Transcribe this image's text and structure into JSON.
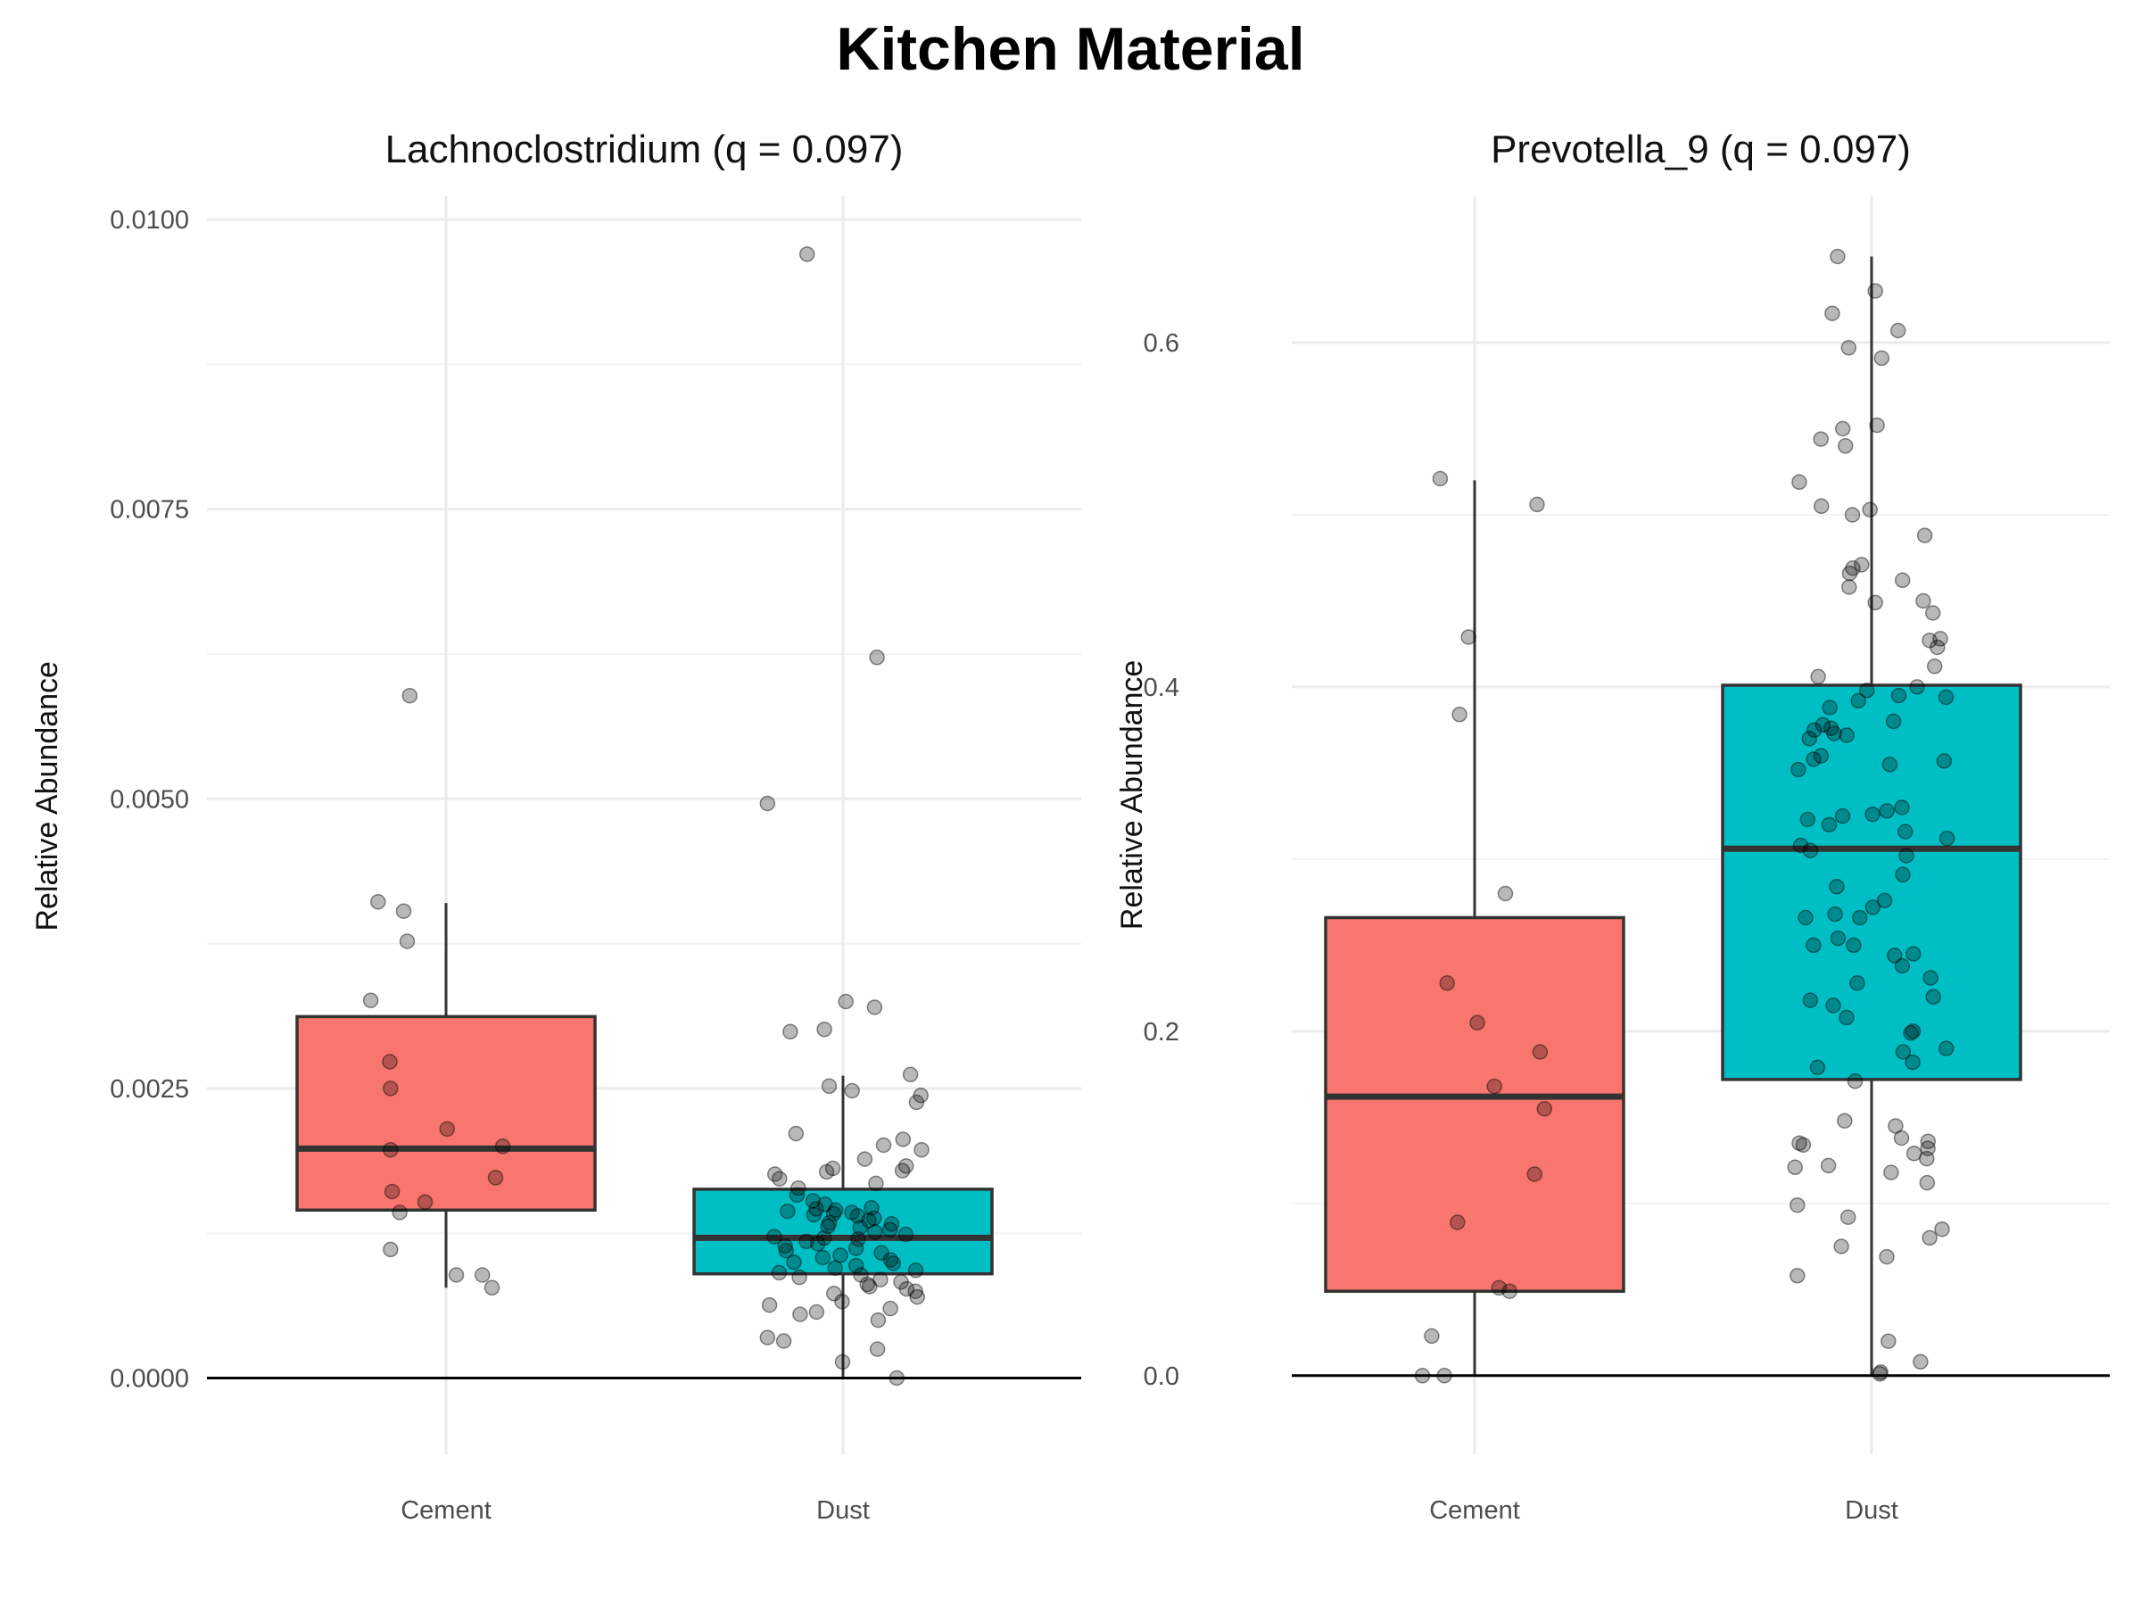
{
  "title": "Kitchen Material",
  "colors": {
    "Cement": "#F8766D",
    "Dust": "#00BFC4"
  },
  "chart_data": [
    {
      "type": "box",
      "title": "Lachnoclostridium (q = 0.097)",
      "ylabel": "Relative Abundance",
      "categories": [
        "Cement",
        "Dust"
      ],
      "ylim": [
        -0.00035,
        0.0102
      ],
      "yticks": [
        0,
        0.0025,
        0.005,
        0.0075,
        0.01
      ],
      "ytick_labels": [
        "0.0000",
        "0.0025",
        "0.0050",
        "0.0075",
        "0.0100"
      ],
      "grid": true,
      "boxes": [
        {
          "category": "Cement",
          "whisker_low": 0.00078,
          "q1": 0.00145,
          "median": 0.00198,
          "q3": 0.00312,
          "whisker_high": 0.0041
        },
        {
          "category": "Dust",
          "whisker_low": 0.0,
          "q1": 0.0009,
          "median": 0.00121,
          "q3": 0.00163,
          "whisker_high": 0.00261
        }
      ],
      "points": [
        {
          "category": "Cement",
          "values": [
            0.00589,
            0.00411,
            0.00403,
            0.00377,
            0.00326,
            0.00273,
            0.0025,
            0.00215,
            0.002,
            0.00197,
            0.00173,
            0.00161,
            0.00152,
            0.00143,
            0.00111,
            0.00089,
            0.00089,
            0.00078
          ]
        },
        {
          "category": "Dust",
          "values": [
            0.0097,
            0.00622,
            0.00496,
            0.00325,
            0.0032,
            0.00301,
            0.00299,
            0.00262,
            0.00252,
            0.00248,
            0.00244,
            0.00238,
            0.00211,
            0.00206,
            0.00201,
            0.00197,
            0.00189,
            0.00183,
            0.00181,
            0.00179,
            0.00178,
            0.00176,
            0.00172,
            0.00168,
            0.00164,
            0.00158,
            0.00153,
            0.0015,
            0.00147,
            0.00146,
            0.00145,
            0.00144,
            0.00143,
            0.00142,
            0.00141,
            0.0014,
            0.00138,
            0.00136,
            0.00134,
            0.00133,
            0.00131,
            0.0013,
            0.00128,
            0.00126,
            0.00124,
            0.00122,
            0.00121,
            0.0012,
            0.00118,
            0.00116,
            0.00114,
            0.00112,
            0.0011,
            0.00108,
            0.00106,
            0.00104,
            0.00102,
            0.001,
            0.00099,
            0.00097,
            0.00095,
            0.00093,
            0.00091,
            0.00089,
            0.00087,
            0.00085,
            0.00083,
            0.00081,
            0.00079,
            0.00077,
            0.00075,
            0.00073,
            0.0007,
            0.00066,
            0.00063,
            0.0006,
            0.00057,
            0.00055,
            0.0005,
            0.00035,
            0.00032,
            0.00025,
            0.00014,
            0.0
          ]
        }
      ]
    },
    {
      "type": "box",
      "title": "Prevotella_9 (q = 0.097)",
      "ylabel": "Relative Abundance",
      "categories": [
        "Cement",
        "Dust"
      ],
      "ylim": [
        -0.025,
        0.685
      ],
      "yticks": [
        0,
        0.2,
        0.4,
        0.6
      ],
      "ytick_labels": [
        "0.0",
        "0.2",
        "0.4",
        "0.6"
      ],
      "grid": true,
      "boxes": [
        {
          "category": "Cement",
          "whisker_low": 0.0,
          "q1": 0.049,
          "median": 0.162,
          "q3": 0.266,
          "whisker_high": 0.52
        },
        {
          "category": "Dust",
          "whisker_low": 0.0,
          "q1": 0.172,
          "median": 0.306,
          "q3": 0.401,
          "whisker_high": 0.65
        }
      ],
      "points": [
        {
          "category": "Cement",
          "values": [
            0.521,
            0.506,
            0.429,
            0.384,
            0.28,
            0.228,
            0.205,
            0.188,
            0.168,
            0.155,
            0.117,
            0.089,
            0.051,
            0.049,
            0.023,
            0.0,
            0.0
          ]
        },
        {
          "category": "Dust",
          "values": [
            0.65,
            0.63,
            0.617,
            0.607,
            0.597,
            0.591,
            0.552,
            0.55,
            0.544,
            0.54,
            0.519,
            0.505,
            0.503,
            0.5,
            0.488,
            0.471,
            0.469,
            0.466,
            0.462,
            0.458,
            0.45,
            0.449,
            0.443,
            0.428,
            0.427,
            0.423,
            0.412,
            0.406,
            0.4,
            0.398,
            0.395,
            0.394,
            0.392,
            0.388,
            0.38,
            0.378,
            0.376,
            0.375,
            0.373,
            0.372,
            0.37,
            0.36,
            0.358,
            0.357,
            0.355,
            0.352,
            0.33,
            0.328,
            0.326,
            0.325,
            0.323,
            0.32,
            0.316,
            0.312,
            0.308,
            0.305,
            0.302,
            0.291,
            0.284,
            0.276,
            0.272,
            0.268,
            0.266,
            0.266,
            0.254,
            0.25,
            0.25,
            0.245,
            0.244,
            0.238,
            0.231,
            0.228,
            0.22,
            0.218,
            0.215,
            0.208,
            0.2,
            0.199,
            0.19,
            0.188,
            0.182,
            0.179,
            0.171,
            0.148,
            0.145,
            0.138,
            0.136,
            0.135,
            0.134,
            0.132,
            0.129,
            0.126,
            0.122,
            0.121,
            0.118,
            0.112,
            0.099,
            0.092,
            0.085,
            0.08,
            0.075,
            0.069,
            0.058,
            0.02,
            0.008,
            0.002,
            0.001
          ]
        }
      ]
    }
  ]
}
